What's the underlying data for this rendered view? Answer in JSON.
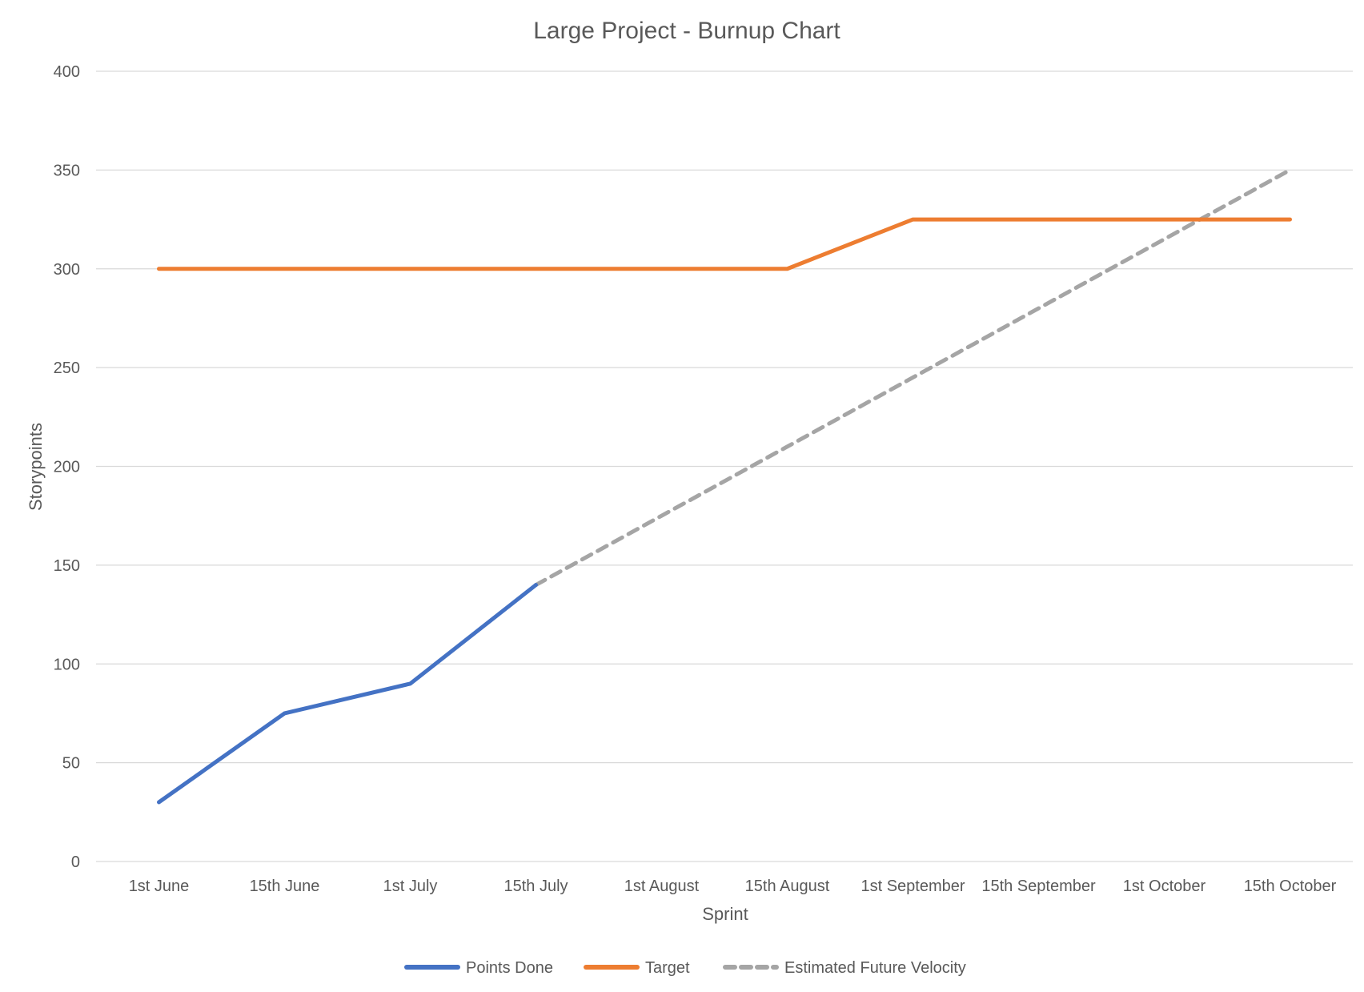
{
  "chart_data": {
    "type": "line",
    "title": "Large Project - Burnup Chart",
    "xlabel": "Sprint",
    "ylabel": "Storypoints",
    "ylim": [
      0,
      400
    ],
    "yticks": [
      0,
      50,
      100,
      150,
      200,
      250,
      300,
      350,
      400
    ],
    "grid": true,
    "legend_position": "bottom",
    "categories": [
      "1st June",
      "15th June",
      "1st July",
      "15th July",
      "1st August",
      "15th August",
      "1st September",
      "15th September",
      "1st October",
      "15th October"
    ],
    "series": [
      {
        "name": "Points Done",
        "color": "#4472c4",
        "style": "solid",
        "values": [
          30,
          75,
          90,
          140,
          null,
          null,
          null,
          null,
          null,
          null
        ]
      },
      {
        "name": "Target",
        "color": "#ed7d31",
        "style": "solid",
        "values": [
          300,
          300,
          300,
          300,
          300,
          300,
          325,
          325,
          325,
          325
        ]
      },
      {
        "name": "Estimated Future Velocity",
        "color": "#a5a5a5",
        "style": "dashed",
        "values": [
          null,
          null,
          null,
          140,
          175,
          210,
          245,
          280,
          315,
          350
        ]
      }
    ]
  }
}
